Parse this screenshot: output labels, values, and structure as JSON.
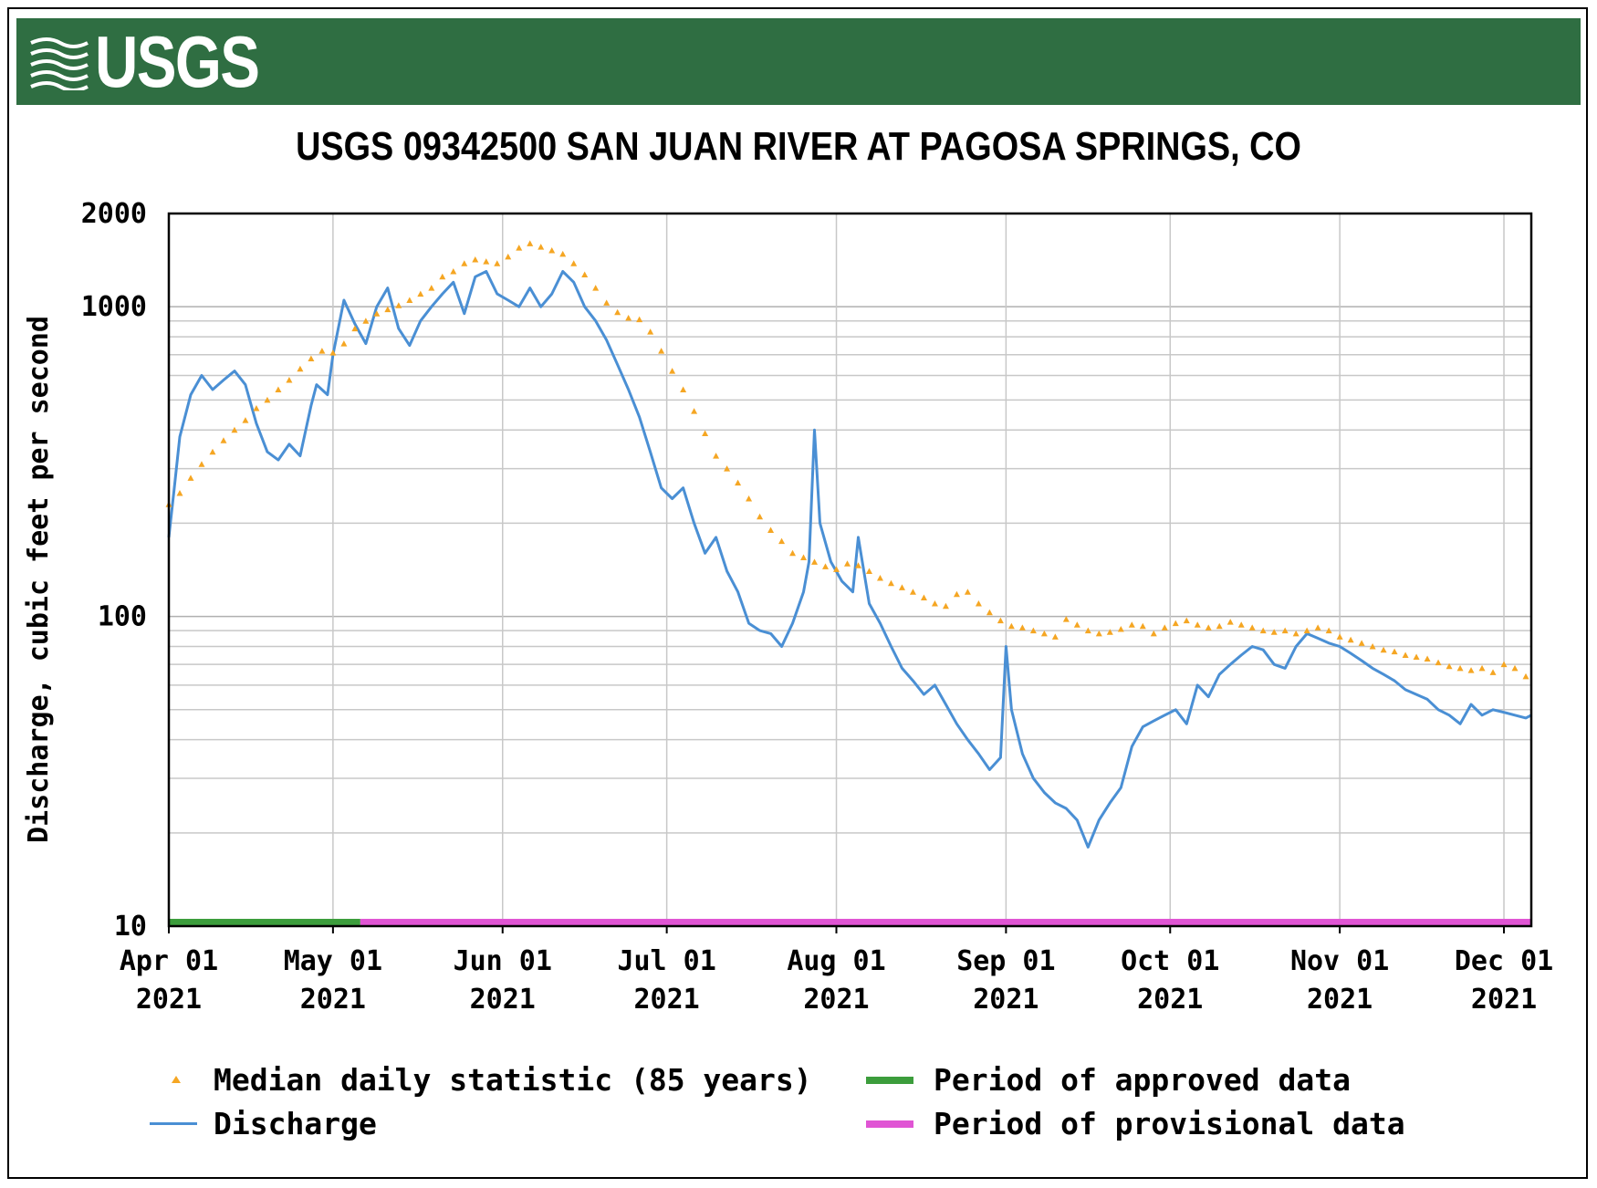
{
  "header": {
    "logo_text": "USGS",
    "banner_color": "#2f6e42"
  },
  "chart_data": {
    "type": "line",
    "title": "USGS 09342500 SAN JUAN RIVER AT PAGOSA SPRINGS, CO",
    "xlabel": "",
    "ylabel": "Discharge, cubic feet per second",
    "yscale": "log",
    "ylim": [
      10,
      2000
    ],
    "y_tick_labels": [
      "2000",
      "1000",
      "100",
      "10"
    ],
    "y_tick_values": [
      2000,
      1000,
      100,
      10
    ],
    "x_ticks": [
      {
        "date": "2021-04-01",
        "line1": "Apr 01",
        "line2": "2021"
      },
      {
        "date": "2021-05-01",
        "line1": "May 01",
        "line2": "2021"
      },
      {
        "date": "2021-06-01",
        "line1": "Jun 01",
        "line2": "2021"
      },
      {
        "date": "2021-07-01",
        "line1": "Jul 01",
        "line2": "2021"
      },
      {
        "date": "2021-08-01",
        "line1": "Aug 01",
        "line2": "2021"
      },
      {
        "date": "2021-09-01",
        "line1": "Sep 01",
        "line2": "2021"
      },
      {
        "date": "2021-10-01",
        "line1": "Oct 01",
        "line2": "2021"
      },
      {
        "date": "2021-11-01",
        "line1": "Nov 01",
        "line2": "2021"
      },
      {
        "date": "2021-12-01",
        "line1": "Dec 01",
        "line2": "2021"
      }
    ],
    "xlim": [
      "2021-04-01",
      "2021-12-06"
    ],
    "grid": true,
    "series": [
      {
        "name": "Discharge",
        "kind": "line",
        "color": "#4a8fd4",
        "points": [
          [
            "2021-04-01",
            180
          ],
          [
            "2021-04-02",
            260
          ],
          [
            "2021-04-03",
            380
          ],
          [
            "2021-04-05",
            520
          ],
          [
            "2021-04-07",
            600
          ],
          [
            "2021-04-09",
            540
          ],
          [
            "2021-04-11",
            580
          ],
          [
            "2021-04-13",
            620
          ],
          [
            "2021-04-15",
            560
          ],
          [
            "2021-04-17",
            420
          ],
          [
            "2021-04-19",
            340
          ],
          [
            "2021-04-21",
            320
          ],
          [
            "2021-04-23",
            360
          ],
          [
            "2021-04-25",
            330
          ],
          [
            "2021-04-27",
            480
          ],
          [
            "2021-04-28",
            560
          ],
          [
            "2021-04-30",
            520
          ],
          [
            "2021-05-01",
            700
          ],
          [
            "2021-05-03",
            1050
          ],
          [
            "2021-05-05",
            880
          ],
          [
            "2021-05-07",
            760
          ],
          [
            "2021-05-09",
            1000
          ],
          [
            "2021-05-11",
            1150
          ],
          [
            "2021-05-13",
            850
          ],
          [
            "2021-05-15",
            750
          ],
          [
            "2021-05-17",
            900
          ],
          [
            "2021-05-19",
            1000
          ],
          [
            "2021-05-21",
            1100
          ],
          [
            "2021-05-23",
            1200
          ],
          [
            "2021-05-25",
            950
          ],
          [
            "2021-05-27",
            1250
          ],
          [
            "2021-05-29",
            1300
          ],
          [
            "2021-05-31",
            1100
          ],
          [
            "2021-06-02",
            1050
          ],
          [
            "2021-06-04",
            1000
          ],
          [
            "2021-06-06",
            1150
          ],
          [
            "2021-06-08",
            1000
          ],
          [
            "2021-06-10",
            1100
          ],
          [
            "2021-06-12",
            1300
          ],
          [
            "2021-06-14",
            1200
          ],
          [
            "2021-06-16",
            1000
          ],
          [
            "2021-06-18",
            900
          ],
          [
            "2021-06-20",
            780
          ],
          [
            "2021-06-22",
            650
          ],
          [
            "2021-06-24",
            540
          ],
          [
            "2021-06-26",
            440
          ],
          [
            "2021-06-28",
            340
          ],
          [
            "2021-06-30",
            260
          ],
          [
            "2021-07-02",
            240
          ],
          [
            "2021-07-04",
            260
          ],
          [
            "2021-07-06",
            200
          ],
          [
            "2021-07-08",
            160
          ],
          [
            "2021-07-10",
            180
          ],
          [
            "2021-07-12",
            140
          ],
          [
            "2021-07-14",
            120
          ],
          [
            "2021-07-16",
            95
          ],
          [
            "2021-07-18",
            90
          ],
          [
            "2021-07-20",
            88
          ],
          [
            "2021-07-22",
            80
          ],
          [
            "2021-07-24",
            95
          ],
          [
            "2021-07-26",
            120
          ],
          [
            "2021-07-27",
            150
          ],
          [
            "2021-07-28",
            400
          ],
          [
            "2021-07-29",
            200
          ],
          [
            "2021-07-31",
            150
          ],
          [
            "2021-08-02",
            130
          ],
          [
            "2021-08-04",
            120
          ],
          [
            "2021-08-05",
            180
          ],
          [
            "2021-08-07",
            110
          ],
          [
            "2021-08-09",
            95
          ],
          [
            "2021-08-11",
            80
          ],
          [
            "2021-08-13",
            68
          ],
          [
            "2021-08-15",
            62
          ],
          [
            "2021-08-17",
            56
          ],
          [
            "2021-08-19",
            60
          ],
          [
            "2021-08-21",
            52
          ],
          [
            "2021-08-23",
            45
          ],
          [
            "2021-08-25",
            40
          ],
          [
            "2021-08-27",
            36
          ],
          [
            "2021-08-29",
            32
          ],
          [
            "2021-08-31",
            35
          ],
          [
            "2021-09-01",
            80
          ],
          [
            "2021-09-02",
            50
          ],
          [
            "2021-09-04",
            36
          ],
          [
            "2021-09-06",
            30
          ],
          [
            "2021-09-08",
            27
          ],
          [
            "2021-09-10",
            25
          ],
          [
            "2021-09-12",
            24
          ],
          [
            "2021-09-14",
            22
          ],
          [
            "2021-09-16",
            18
          ],
          [
            "2021-09-18",
            22
          ],
          [
            "2021-09-20",
            25
          ],
          [
            "2021-09-22",
            28
          ],
          [
            "2021-09-24",
            38
          ],
          [
            "2021-09-26",
            44
          ],
          [
            "2021-09-28",
            46
          ],
          [
            "2021-09-30",
            48
          ],
          [
            "2021-10-02",
            50
          ],
          [
            "2021-10-04",
            45
          ],
          [
            "2021-10-06",
            60
          ],
          [
            "2021-10-08",
            55
          ],
          [
            "2021-10-10",
            65
          ],
          [
            "2021-10-12",
            70
          ],
          [
            "2021-10-14",
            75
          ],
          [
            "2021-10-16",
            80
          ],
          [
            "2021-10-18",
            78
          ],
          [
            "2021-10-20",
            70
          ],
          [
            "2021-10-22",
            68
          ],
          [
            "2021-10-24",
            80
          ],
          [
            "2021-10-26",
            88
          ],
          [
            "2021-10-28",
            85
          ],
          [
            "2021-10-30",
            82
          ],
          [
            "2021-11-01",
            80
          ],
          [
            "2021-11-03",
            76
          ],
          [
            "2021-11-05",
            72
          ],
          [
            "2021-11-07",
            68
          ],
          [
            "2021-11-09",
            65
          ],
          [
            "2021-11-11",
            62
          ],
          [
            "2021-11-13",
            58
          ],
          [
            "2021-11-15",
            56
          ],
          [
            "2021-11-17",
            54
          ],
          [
            "2021-11-19",
            50
          ],
          [
            "2021-11-21",
            48
          ],
          [
            "2021-11-23",
            45
          ],
          [
            "2021-11-25",
            52
          ],
          [
            "2021-11-27",
            48
          ],
          [
            "2021-11-29",
            50
          ],
          [
            "2021-12-01",
            49
          ],
          [
            "2021-12-03",
            48
          ],
          [
            "2021-12-05",
            47
          ],
          [
            "2021-12-06",
            48
          ]
        ]
      },
      {
        "name": "Median daily statistic (85 years)",
        "kind": "scatter",
        "color": "#f5a623",
        "points": [
          [
            "2021-04-01",
            230
          ],
          [
            "2021-04-03",
            250
          ],
          [
            "2021-04-05",
            280
          ],
          [
            "2021-04-07",
            310
          ],
          [
            "2021-04-09",
            340
          ],
          [
            "2021-04-11",
            370
          ],
          [
            "2021-04-13",
            400
          ],
          [
            "2021-04-15",
            430
          ],
          [
            "2021-04-17",
            470
          ],
          [
            "2021-04-19",
            500
          ],
          [
            "2021-04-21",
            540
          ],
          [
            "2021-04-23",
            580
          ],
          [
            "2021-04-25",
            630
          ],
          [
            "2021-04-27",
            680
          ],
          [
            "2021-04-29",
            720
          ],
          [
            "2021-05-01",
            710
          ],
          [
            "2021-05-03",
            760
          ],
          [
            "2021-05-05",
            850
          ],
          [
            "2021-05-07",
            900
          ],
          [
            "2021-05-09",
            950
          ],
          [
            "2021-05-11",
            980
          ],
          [
            "2021-05-13",
            1010
          ],
          [
            "2021-05-15",
            1050
          ],
          [
            "2021-05-17",
            1100
          ],
          [
            "2021-05-19",
            1150
          ],
          [
            "2021-05-21",
            1250
          ],
          [
            "2021-05-23",
            1300
          ],
          [
            "2021-05-25",
            1380
          ],
          [
            "2021-05-27",
            1420
          ],
          [
            "2021-05-29",
            1400
          ],
          [
            "2021-05-31",
            1380
          ],
          [
            "2021-06-02",
            1450
          ],
          [
            "2021-06-04",
            1550
          ],
          [
            "2021-06-06",
            1600
          ],
          [
            "2021-06-08",
            1560
          ],
          [
            "2021-06-10",
            1520
          ],
          [
            "2021-06-12",
            1480
          ],
          [
            "2021-06-14",
            1380
          ],
          [
            "2021-06-16",
            1270
          ],
          [
            "2021-06-18",
            1150
          ],
          [
            "2021-06-20",
            1030
          ],
          [
            "2021-06-22",
            960
          ],
          [
            "2021-06-24",
            920
          ],
          [
            "2021-06-26",
            910
          ],
          [
            "2021-06-28",
            830
          ],
          [
            "2021-06-30",
            720
          ],
          [
            "2021-07-02",
            620
          ],
          [
            "2021-07-04",
            540
          ],
          [
            "2021-07-06",
            460
          ],
          [
            "2021-07-08",
            390
          ],
          [
            "2021-07-10",
            330
          ],
          [
            "2021-07-12",
            300
          ],
          [
            "2021-07-14",
            270
          ],
          [
            "2021-07-16",
            240
          ],
          [
            "2021-07-18",
            210
          ],
          [
            "2021-07-20",
            190
          ],
          [
            "2021-07-22",
            175
          ],
          [
            "2021-07-24",
            160
          ],
          [
            "2021-07-26",
            155
          ],
          [
            "2021-07-28",
            150
          ],
          [
            "2021-07-30",
            145
          ],
          [
            "2021-08-01",
            142
          ],
          [
            "2021-08-03",
            148
          ],
          [
            "2021-08-05",
            146
          ],
          [
            "2021-08-07",
            140
          ],
          [
            "2021-08-09",
            133
          ],
          [
            "2021-08-11",
            128
          ],
          [
            "2021-08-13",
            124
          ],
          [
            "2021-08-15",
            120
          ],
          [
            "2021-08-17",
            115
          ],
          [
            "2021-08-19",
            110
          ],
          [
            "2021-08-21",
            108
          ],
          [
            "2021-08-23",
            118
          ],
          [
            "2021-08-25",
            120
          ],
          [
            "2021-08-27",
            110
          ],
          [
            "2021-08-29",
            103
          ],
          [
            "2021-08-31",
            97
          ],
          [
            "2021-09-02",
            93
          ],
          [
            "2021-09-04",
            92
          ],
          [
            "2021-09-06",
            90
          ],
          [
            "2021-09-08",
            88
          ],
          [
            "2021-09-10",
            86
          ],
          [
            "2021-09-12",
            98
          ],
          [
            "2021-09-14",
            94
          ],
          [
            "2021-09-16",
            90
          ],
          [
            "2021-09-18",
            88
          ],
          [
            "2021-09-20",
            89
          ],
          [
            "2021-09-22",
            91
          ],
          [
            "2021-09-24",
            94
          ],
          [
            "2021-09-26",
            93
          ],
          [
            "2021-09-28",
            88
          ],
          [
            "2021-09-30",
            92
          ],
          [
            "2021-10-02",
            95
          ],
          [
            "2021-10-04",
            97
          ],
          [
            "2021-10-06",
            94
          ],
          [
            "2021-10-08",
            92
          ],
          [
            "2021-10-10",
            93
          ],
          [
            "2021-10-12",
            96
          ],
          [
            "2021-10-14",
            94
          ],
          [
            "2021-10-16",
            92
          ],
          [
            "2021-10-18",
            90
          ],
          [
            "2021-10-20",
            89
          ],
          [
            "2021-10-22",
            90
          ],
          [
            "2021-10-24",
            88
          ],
          [
            "2021-10-26",
            90
          ],
          [
            "2021-10-28",
            92
          ],
          [
            "2021-10-30",
            90
          ],
          [
            "2021-11-01",
            86
          ],
          [
            "2021-11-03",
            84
          ],
          [
            "2021-11-05",
            82
          ],
          [
            "2021-11-07",
            80
          ],
          [
            "2021-11-09",
            78
          ],
          [
            "2021-11-11",
            77
          ],
          [
            "2021-11-13",
            75
          ],
          [
            "2021-11-15",
            74
          ],
          [
            "2021-11-17",
            73
          ],
          [
            "2021-11-19",
            71
          ],
          [
            "2021-11-21",
            69
          ],
          [
            "2021-11-23",
            68
          ],
          [
            "2021-11-25",
            67
          ],
          [
            "2021-11-27",
            68
          ],
          [
            "2021-11-29",
            66
          ],
          [
            "2021-12-01",
            70
          ],
          [
            "2021-12-03",
            68
          ],
          [
            "2021-12-05",
            64
          ]
        ]
      }
    ],
    "approval_bar": [
      {
        "name": "Period of approved data",
        "start": "2021-04-01",
        "end": "2021-05-06",
        "color": "#3c9d3c"
      },
      {
        "name": "Period of provisional data",
        "start": "2021-05-06",
        "end": "2021-12-06",
        "color": "#e055d4"
      }
    ],
    "legend": {
      "placement": "bottom",
      "items": [
        {
          "label": "Median daily statistic (85 years)",
          "kind": "marker",
          "color": "#f5a623"
        },
        {
          "label": "Period of approved data",
          "kind": "bar",
          "color": "#3c9d3c"
        },
        {
          "label": "Discharge",
          "kind": "line",
          "color": "#4a8fd4"
        },
        {
          "label": "Period of provisional data",
          "kind": "bar",
          "color": "#e055d4"
        }
      ]
    }
  }
}
